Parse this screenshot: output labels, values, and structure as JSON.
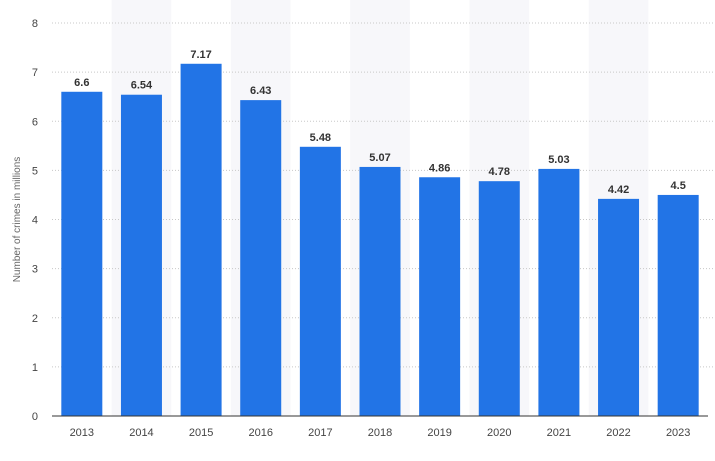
{
  "chart_data": {
    "type": "bar",
    "title": "",
    "xlabel": "",
    "ylabel": "Number of crimes in millions",
    "categories": [
      "2013",
      "2014",
      "2015",
      "2016",
      "2017",
      "2018",
      "2019",
      "2020",
      "2021",
      "2022",
      "2023"
    ],
    "values": [
      6.6,
      6.54,
      7.17,
      6.43,
      5.48,
      5.07,
      4.86,
      4.78,
      5.03,
      4.42,
      4.5
    ],
    "data_labels": [
      "6.6",
      "6.54",
      "7.17",
      "6.43",
      "5.48",
      "5.07",
      "4.86",
      "4.78",
      "5.03",
      "4.42",
      "4.5"
    ],
    "ylim": [
      0,
      8
    ],
    "yticks": [
      "0",
      "1",
      "2",
      "3",
      "4",
      "5",
      "6",
      "7",
      "8"
    ],
    "grid": true,
    "legend": "none",
    "colors": {
      "bar": "#2274e6",
      "band": "#f7f7fa",
      "grid": "#c8c8c8",
      "axis": "#333333"
    }
  }
}
